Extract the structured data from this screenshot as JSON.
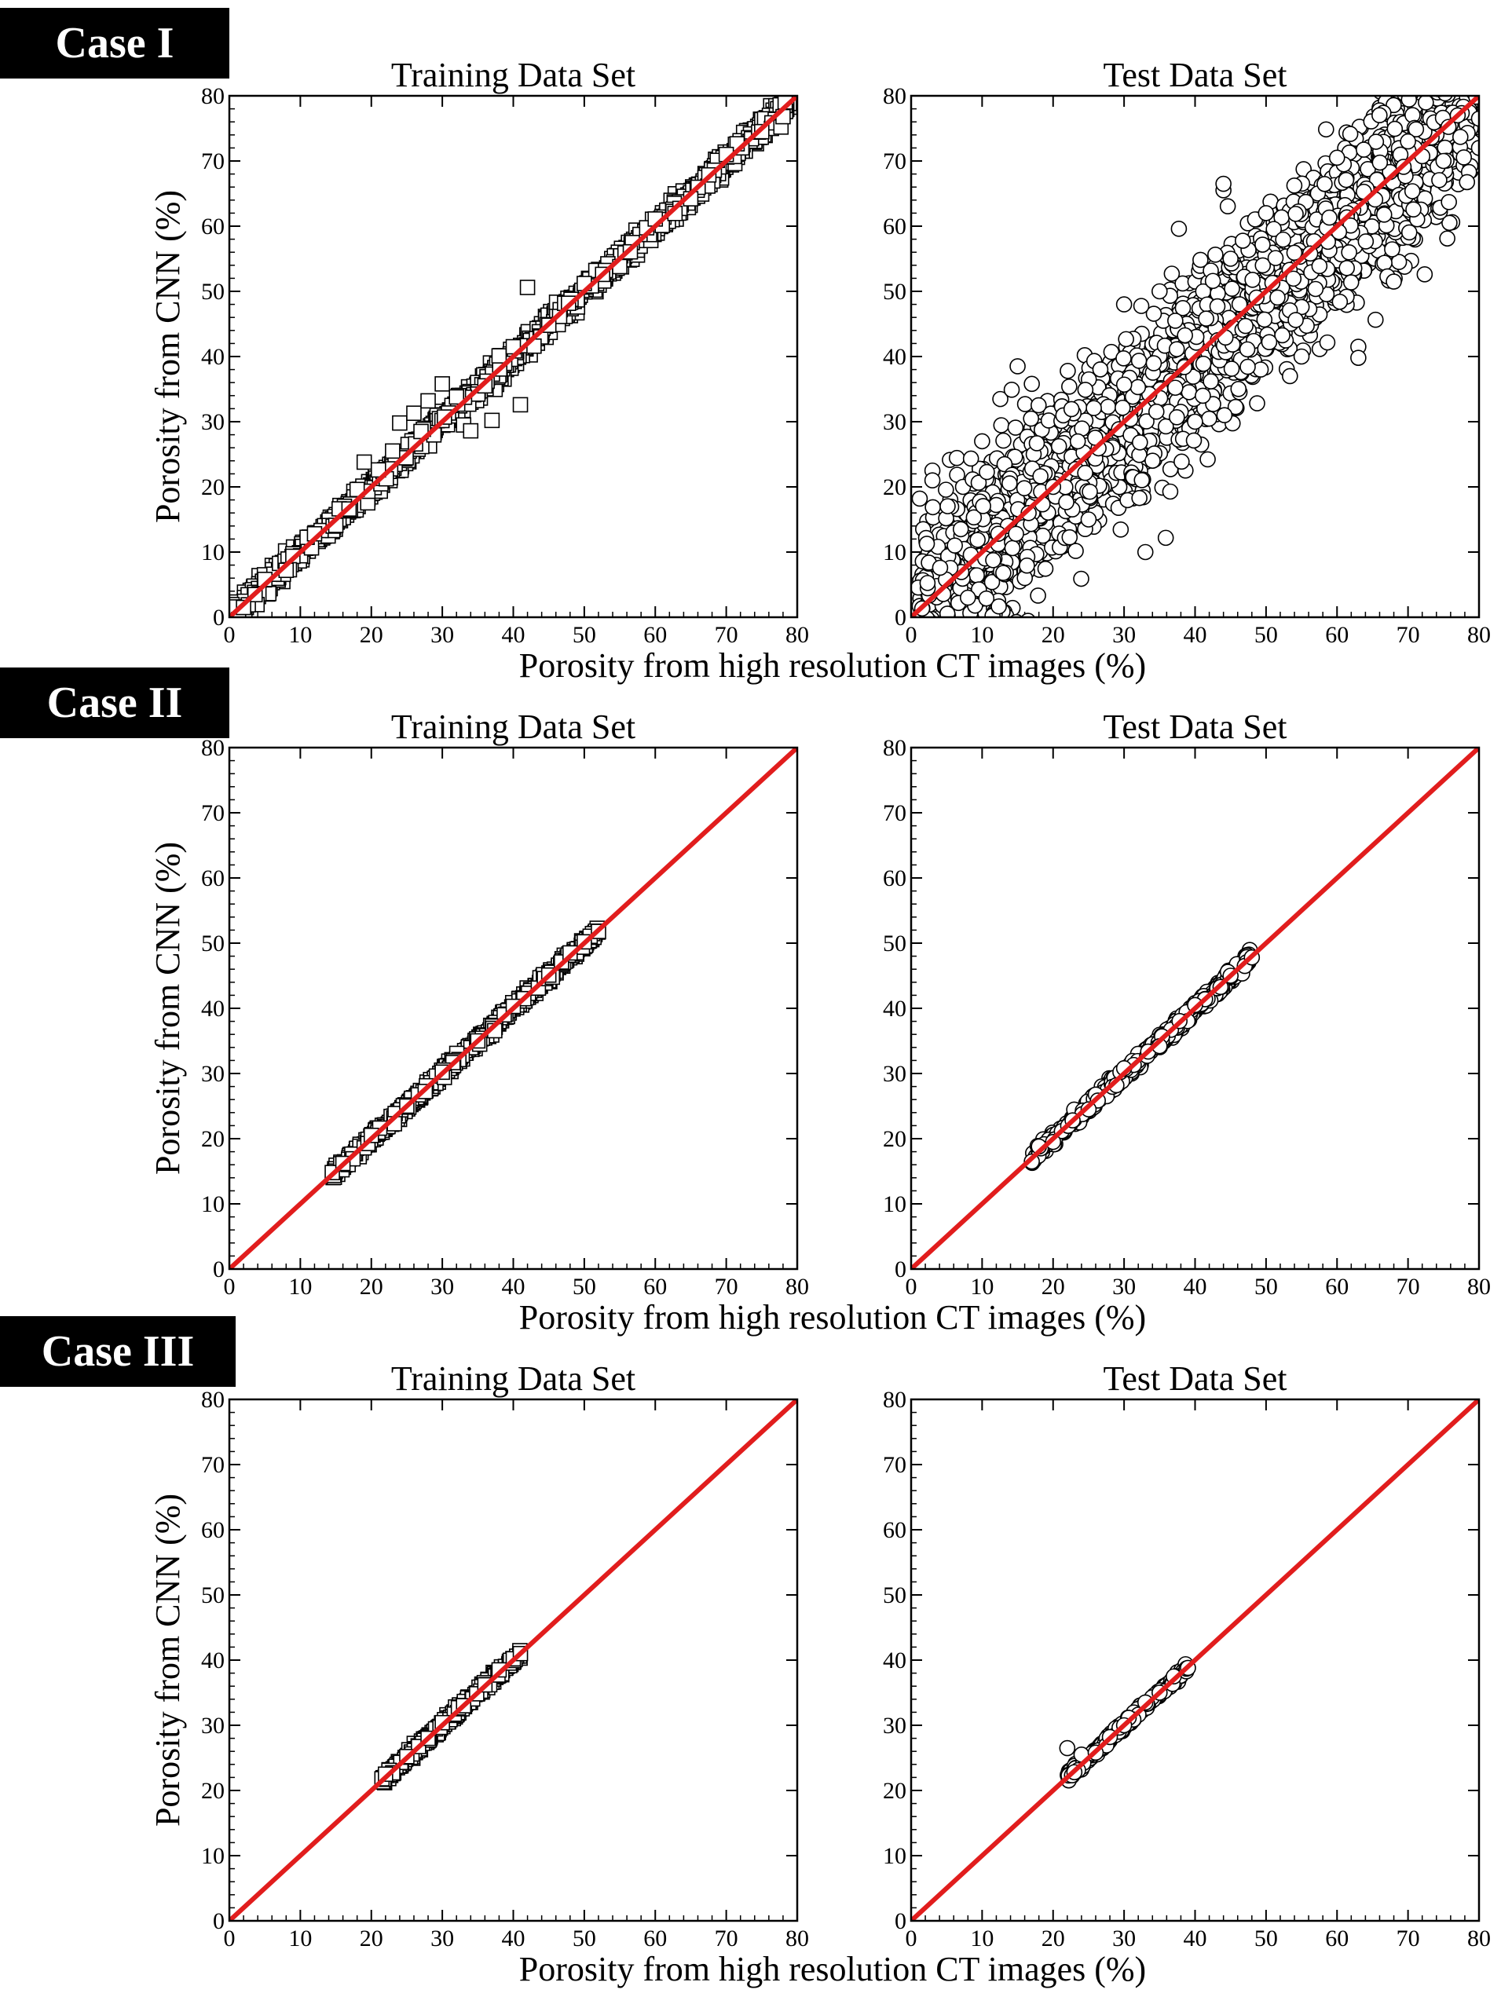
{
  "case_labels": [
    "Case I",
    "Case II",
    "Case III"
  ],
  "chart_data": [
    {
      "case": "Case I",
      "type": "scatter",
      "title": "Training Data Set",
      "xlabel": "",
      "ylabel": "Porosity from CNN (%)",
      "xlim": [
        0,
        80
      ],
      "ylim": [
        0,
        80
      ],
      "ticks": [
        0,
        10,
        20,
        30,
        40,
        50,
        60,
        70,
        80
      ],
      "marker": "square",
      "reference_line": {
        "color": "#e11d1d",
        "from": [
          0,
          0
        ],
        "to": [
          80,
          80
        ]
      },
      "data_range": [
        0,
        79
      ],
      "spread": 1.5,
      "points": [
        [
          2,
          1.5
        ],
        [
          5,
          5.8
        ],
        [
          8,
          7.2
        ],
        [
          12,
          12.8
        ],
        [
          15,
          14.1
        ],
        [
          18,
          19.6
        ],
        [
          19,
          23.8
        ],
        [
          21,
          22.6
        ],
        [
          23,
          25.5
        ],
        [
          24,
          29.8
        ],
        [
          26,
          31.3
        ],
        [
          27,
          28.5
        ],
        [
          28,
          33.2
        ],
        [
          30,
          35.8
        ],
        [
          32,
          33.8
        ],
        [
          33,
          29.5
        ],
        [
          34,
          28.6
        ],
        [
          36,
          35.5
        ],
        [
          37,
          30.2
        ],
        [
          38,
          40.1
        ],
        [
          40,
          41.5
        ],
        [
          41,
          32.6
        ],
        [
          42,
          50.6
        ],
        [
          45,
          44.8
        ],
        [
          50,
          51.2
        ],
        [
          55,
          53.8
        ],
        [
          60,
          61.1
        ],
        [
          65,
          64.2
        ],
        [
          70,
          71.0
        ],
        [
          75,
          74.5
        ],
        [
          78,
          76.8
        ]
      ]
    },
    {
      "case": "Case I",
      "type": "scatter",
      "title": "Test Data Set",
      "xlabel": "Porosity from high resolution CT images (%)",
      "ylabel": "",
      "xlim": [
        0,
        80
      ],
      "ylim": [
        0,
        80
      ],
      "ticks": [
        0,
        10,
        20,
        30,
        40,
        50,
        60,
        70,
        80
      ],
      "marker": "circle",
      "reference_line": {
        "color": "#e11d1d",
        "from": [
          0,
          0
        ],
        "to": [
          80,
          80
        ]
      },
      "data_range": [
        1,
        80
      ],
      "spread": 11,
      "points": [
        [
          3,
          22.5
        ],
        [
          3,
          21.0
        ],
        [
          8,
          3.0
        ],
        [
          10,
          27.0
        ],
        [
          15,
          38.5
        ],
        [
          17,
          35.8
        ],
        [
          20,
          20.0
        ],
        [
          25,
          15.0
        ],
        [
          30,
          48.0
        ],
        [
          33,
          10.0
        ],
        [
          35,
          50.0
        ],
        [
          40,
          30.0
        ],
        [
          44,
          65.5
        ],
        [
          44,
          66.5
        ],
        [
          45,
          55.0
        ],
        [
          50,
          62.0
        ],
        [
          55,
          40.0
        ],
        [
          60,
          70.5
        ],
        [
          63,
          41.5
        ],
        [
          63,
          39.8
        ],
        [
          68,
          51.5
        ],
        [
          70,
          73.0
        ],
        [
          75,
          70.0
        ],
        [
          77,
          77.0
        ],
        [
          80,
          72.0
        ],
        [
          80,
          76.5
        ]
      ]
    },
    {
      "case": "Case II",
      "type": "scatter",
      "title": "Training Data Set",
      "xlabel": "",
      "ylabel": "Porosity from CNN (%)",
      "xlim": [
        0,
        80
      ],
      "ylim": [
        0,
        80
      ],
      "ticks": [
        0,
        10,
        20,
        30,
        40,
        50,
        60,
        70,
        80
      ],
      "marker": "square",
      "reference_line": {
        "color": "#e11d1d",
        "from": [
          0,
          0
        ],
        "to": [
          80,
          80
        ]
      },
      "data_range": [
        14.5,
        52
      ],
      "spread": 0.7,
      "points": [
        [
          14.5,
          14.8
        ],
        [
          16,
          16.2
        ],
        [
          20,
          20.5
        ],
        [
          25,
          25.0
        ],
        [
          30,
          30.2
        ],
        [
          35,
          35.0
        ],
        [
          40,
          40.3
        ],
        [
          45,
          45.1
        ],
        [
          48,
          48.5
        ],
        [
          50,
          50.2
        ],
        [
          52,
          51.8
        ]
      ]
    },
    {
      "case": "Case II",
      "type": "scatter",
      "title": "Test Data Set",
      "xlabel": "Porosity from high resolution CT images (%)",
      "ylabel": "",
      "xlim": [
        0,
        80
      ],
      "ylim": [
        0,
        80
      ],
      "ticks": [
        0,
        10,
        20,
        30,
        40,
        50,
        60,
        70,
        80
      ],
      "marker": "circle",
      "reference_line": {
        "color": "#e11d1d",
        "from": [
          0,
          0
        ],
        "to": [
          80,
          80
        ]
      },
      "data_range": [
        17,
        48
      ],
      "spread": 1.0,
      "points": [
        [
          17,
          16.5
        ],
        [
          18,
          18.8
        ],
        [
          20,
          19.5
        ],
        [
          25,
          24.5
        ],
        [
          30,
          30.8
        ],
        [
          35,
          34.2
        ],
        [
          40,
          40.5
        ],
        [
          45,
          45.0
        ],
        [
          47,
          46.5
        ],
        [
          48,
          47.8
        ]
      ]
    },
    {
      "case": "Case III",
      "type": "scatter",
      "title": "Training Data Set",
      "xlabel": "",
      "ylabel": "Porosity from CNN (%)",
      "xlim": [
        0,
        80
      ],
      "ylim": [
        0,
        80
      ],
      "ticks": [
        0,
        10,
        20,
        30,
        40,
        50,
        60,
        70,
        80
      ],
      "marker": "square",
      "reference_line": {
        "color": "#e11d1d",
        "from": [
          0,
          0
        ],
        "to": [
          80,
          80
        ]
      },
      "data_range": [
        21.5,
        41
      ],
      "spread": 0.6,
      "points": [
        [
          21.5,
          21.8
        ],
        [
          22,
          22.5
        ],
        [
          25,
          25.2
        ],
        [
          28,
          28.0
        ],
        [
          30,
          30.4
        ],
        [
          33,
          33.0
        ],
        [
          36,
          36.2
        ],
        [
          38,
          38.5
        ],
        [
          40,
          40.2
        ],
        [
          41,
          41.0
        ]
      ]
    },
    {
      "case": "Case III",
      "type": "scatter",
      "title": "Test Data Set",
      "xlabel": "Porosity from high resolution CT images (%)",
      "ylabel": "",
      "xlim": [
        0,
        80
      ],
      "ylim": [
        0,
        80
      ],
      "ticks": [
        0,
        10,
        20,
        30,
        40,
        50,
        60,
        70,
        80
      ],
      "marker": "circle",
      "reference_line": {
        "color": "#e11d1d",
        "from": [
          0,
          0
        ],
        "to": [
          80,
          80
        ]
      },
      "data_range": [
        22,
        39
      ],
      "spread": 0.6,
      "points": [
        [
          22,
          26.5
        ],
        [
          23,
          22.8
        ],
        [
          24,
          25.5
        ],
        [
          26,
          25.8
        ],
        [
          28,
          28.2
        ],
        [
          30,
          30.0
        ],
        [
          33,
          33.5
        ],
        [
          35,
          35.0
        ],
        [
          37,
          37.5
        ],
        [
          39,
          38.8
        ]
      ]
    }
  ]
}
